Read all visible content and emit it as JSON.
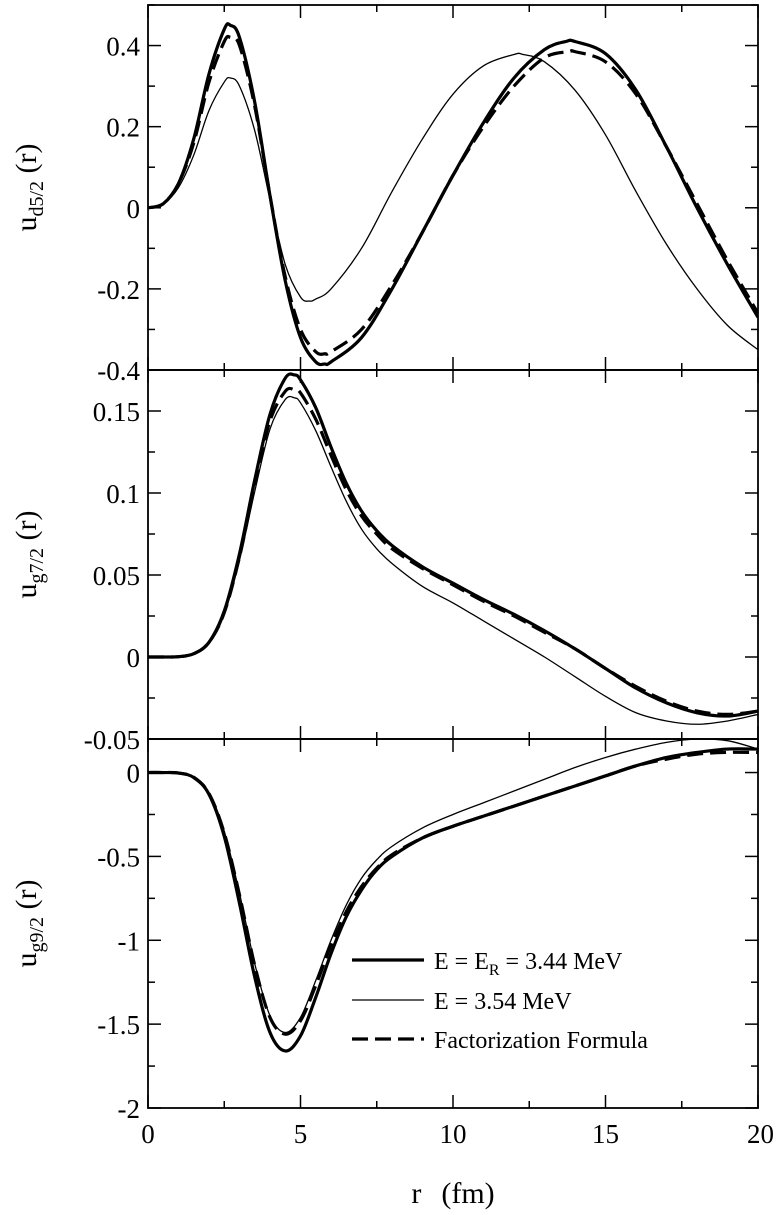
{
  "chart_data": {
    "type": "line",
    "x_axis": {
      "label_var": "r",
      "label_unit": "(fm)",
      "range": [
        0,
        20
      ],
      "ticks": [
        0,
        5,
        10,
        15,
        20
      ],
      "tick_labels": [
        "0",
        "5",
        "10",
        "15",
        "20"
      ]
    },
    "legend": {
      "placement": "inside-bottom-right-of-lower-panel",
      "entries": [
        {
          "pre": "E = E",
          "sub": "R",
          "post": " = 3.44 MeV",
          "style": "thick-solid"
        },
        {
          "pre": "E = 3.54 MeV",
          "sub": "",
          "post": "",
          "style": "thin-solid"
        },
        {
          "pre": "Factorization Formula",
          "sub": "",
          "post": "",
          "style": "dashed"
        }
      ]
    },
    "panels": [
      {
        "ylabel_main": "u",
        "ylabel_sub": "d5/2",
        "ylabel_tail": " (r)",
        "ylim": [
          -0.4,
          0.5
        ],
        "ticks": [
          -0.4,
          -0.2,
          0,
          0.2,
          0.4
        ],
        "tick_labels": [
          "-0.4",
          "-0.2",
          "0",
          "0.2",
          "0.4"
        ],
        "series": [
          {
            "style": "thick-solid",
            "x": [
              0,
              0.5,
              1,
              1.5,
              2,
              2.5,
              2.7,
              3,
              3.5,
              4,
              4.5,
              5,
              5.5,
              5.8,
              6,
              7,
              8,
              9,
              10,
              11,
              12,
              13,
              13.7,
              14,
              15,
              16,
              17,
              18,
              19,
              20
            ],
            "y": [
              0,
              0.01,
              0.06,
              0.17,
              0.33,
              0.44,
              0.45,
              0.42,
              0.26,
              0.03,
              -0.18,
              -0.32,
              -0.38,
              -0.385,
              -0.38,
              -0.32,
              -0.2,
              -0.06,
              0.08,
              0.21,
              0.32,
              0.39,
              0.41,
              0.41,
              0.38,
              0.29,
              0.15,
              0.0,
              -0.14,
              -0.27
            ]
          },
          {
            "style": "thin-solid",
            "x": [
              0,
              0.5,
              1,
              1.5,
              2,
              2.5,
              2.7,
              3,
              3.5,
              4,
              4.5,
              5,
              5.3,
              5.5,
              6,
              7,
              8,
              9,
              10,
              11,
              12,
              12.3,
              13,
              14,
              15,
              16,
              17,
              18,
              19,
              20
            ],
            "y": [
              0,
              0.01,
              0.05,
              0.13,
              0.24,
              0.31,
              0.32,
              0.3,
              0.19,
              0.02,
              -0.14,
              -0.22,
              -0.23,
              -0.225,
              -0.2,
              -0.1,
              0.04,
              0.17,
              0.28,
              0.35,
              0.378,
              0.378,
              0.36,
              0.29,
              0.18,
              0.04,
              -0.09,
              -0.2,
              -0.29,
              -0.35
            ]
          },
          {
            "style": "dashed",
            "x": [
              0,
              0.5,
              1,
              1.5,
              2,
              2.5,
              2.7,
              3,
              3.5,
              4,
              4.5,
              5,
              5.5,
              5.8,
              6,
              7,
              8,
              9,
              10,
              11,
              12,
              13,
              13.8,
              14,
              15,
              16,
              17,
              18,
              19,
              20
            ],
            "y": [
              0,
              0.01,
              0.06,
              0.16,
              0.31,
              0.41,
              0.42,
              0.4,
              0.25,
              0.03,
              -0.17,
              -0.3,
              -0.355,
              -0.36,
              -0.355,
              -0.3,
              -0.19,
              -0.06,
              0.08,
              0.2,
              0.3,
              0.37,
              0.385,
              0.385,
              0.36,
              0.28,
              0.15,
              0.01,
              -0.13,
              -0.26
            ]
          }
        ]
      },
      {
        "ylabel_main": "u",
        "ylabel_sub": "g7/2",
        "ylabel_tail": " (r)",
        "ylim": [
          -0.05,
          0.175
        ],
        "ticks": [
          -0.05,
          0,
          0.05,
          0.1,
          0.15
        ],
        "tick_labels": [
          "-0.05",
          "0",
          "0.05",
          "0.1",
          "0.15"
        ],
        "series": [
          {
            "style": "thick-solid",
            "x": [
              0,
              0.5,
              1,
              1.5,
              2,
              2.5,
              3,
              3.5,
              4,
              4.5,
              4.8,
              5,
              5.5,
              6,
              6.5,
              7,
              7.5,
              8,
              9,
              10,
              11,
              12,
              13,
              14,
              15,
              16,
              17,
              18,
              19,
              20
            ],
            "y": [
              0,
              0,
              0.0002,
              0.002,
              0.009,
              0.028,
              0.063,
              0.108,
              0.148,
              0.17,
              0.172,
              0.169,
              0.152,
              0.128,
              0.106,
              0.089,
              0.077,
              0.068,
              0.055,
              0.045,
              0.035,
              0.026,
              0.016,
              0.005,
              -0.007,
              -0.019,
              -0.028,
              -0.034,
              -0.036,
              -0.033
            ]
          },
          {
            "style": "thin-solid",
            "x": [
              0,
              0.5,
              1,
              1.5,
              2,
              2.5,
              3,
              3.5,
              4,
              4.5,
              4.8,
              5,
              5.5,
              6,
              6.5,
              7,
              7.5,
              8,
              9,
              10,
              11,
              12,
              13,
              14,
              15,
              16,
              17,
              18,
              19,
              20
            ],
            "y": [
              0,
              0,
              0.0002,
              0.002,
              0.008,
              0.026,
              0.059,
              0.101,
              0.139,
              0.157,
              0.158,
              0.155,
              0.138,
              0.116,
              0.095,
              0.078,
              0.066,
              0.057,
              0.043,
              0.033,
              0.022,
              0.011,
              0.0,
              -0.012,
              -0.024,
              -0.034,
              -0.039,
              -0.041,
              -0.039,
              -0.035
            ]
          },
          {
            "style": "dashed",
            "x": [
              0,
              0.5,
              1,
              1.5,
              2,
              2.5,
              3,
              3.5,
              4,
              4.5,
              4.8,
              5,
              5.5,
              6,
              6.5,
              7,
              7.5,
              8,
              9,
              10,
              11,
              12,
              13,
              14,
              15,
              16,
              17,
              18,
              19,
              20
            ],
            "y": [
              0,
              0,
              0.0002,
              0.002,
              0.009,
              0.027,
              0.061,
              0.105,
              0.144,
              0.162,
              0.163,
              0.161,
              0.145,
              0.123,
              0.102,
              0.086,
              0.075,
              0.066,
              0.054,
              0.044,
              0.034,
              0.025,
              0.015,
              0.005,
              -0.007,
              -0.018,
              -0.027,
              -0.033,
              -0.035,
              -0.033
            ]
          }
        ]
      },
      {
        "ylabel_main": "u",
        "ylabel_sub": "g9/2",
        "ylabel_tail": " (r)",
        "ylim": [
          -2,
          0.2
        ],
        "ticks": [
          -2,
          -1.5,
          -1,
          -0.5,
          0
        ],
        "tick_labels": [
          "-2",
          "-1.5",
          "-1",
          "-0.5",
          "0"
        ],
        "series": [
          {
            "style": "thick-solid",
            "x": [
              0,
              0.5,
              1,
              1.5,
              2,
              2.5,
              3,
              3.5,
              4,
              4.5,
              5,
              5.5,
              6,
              6.5,
              7,
              7.5,
              8,
              9,
              10,
              11,
              12,
              13,
              14,
              15,
              16,
              17,
              18,
              19,
              20
            ],
            "y": [
              0,
              0,
              -0.003,
              -0.03,
              -0.13,
              -0.38,
              -0.78,
              -1.22,
              -1.55,
              -1.66,
              -1.57,
              -1.34,
              -1.08,
              -0.86,
              -0.7,
              -0.58,
              -0.5,
              -0.39,
              -0.32,
              -0.26,
              -0.2,
              -0.14,
              -0.08,
              -0.02,
              0.04,
              0.09,
              0.12,
              0.14,
              0.14
            ]
          },
          {
            "style": "thin-solid",
            "x": [
              0,
              0.5,
              1,
              1.5,
              2,
              2.5,
              3,
              3.5,
              4,
              4.5,
              5,
              5.5,
              6,
              6.5,
              7,
              7.5,
              8,
              9,
              10,
              11,
              12,
              13,
              14,
              15,
              16,
              17,
              18,
              19,
              20
            ],
            "y": [
              0,
              0,
              -0.003,
              -0.027,
              -0.12,
              -0.35,
              -0.72,
              -1.14,
              -1.45,
              -1.55,
              -1.46,
              -1.24,
              -1.0,
              -0.79,
              -0.63,
              -0.52,
              -0.44,
              -0.33,
              -0.25,
              -0.18,
              -0.11,
              -0.04,
              0.03,
              0.09,
              0.14,
              0.18,
              0.2,
              0.19,
              0.14
            ]
          },
          {
            "style": "dashed",
            "x": [
              0,
              0.5,
              1,
              1.5,
              2,
              2.5,
              3,
              3.5,
              4,
              4.5,
              5,
              5.5,
              6,
              6.5,
              7,
              7.5,
              8,
              9,
              10,
              11,
              12,
              13,
              14,
              15,
              16,
              17,
              18,
              19,
              20
            ],
            "y": [
              0,
              0,
              -0.003,
              -0.028,
              -0.125,
              -0.36,
              -0.73,
              -1.15,
              -1.46,
              -1.56,
              -1.48,
              -1.27,
              -1.03,
              -0.83,
              -0.68,
              -0.57,
              -0.49,
              -0.39,
              -0.32,
              -0.26,
              -0.2,
              -0.14,
              -0.08,
              -0.02,
              0.04,
              0.08,
              0.11,
              0.12,
              0.12
            ]
          }
        ]
      }
    ]
  }
}
